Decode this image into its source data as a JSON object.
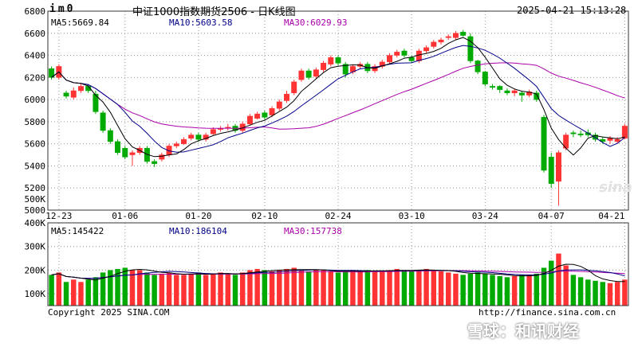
{
  "header": {
    "code": "im0",
    "title": "中证1000指数期货2506 - 日K线图",
    "timestamp": "2025-04-21 15:13:28"
  },
  "price_panel": {
    "ma5_label": "MA5:5669.84",
    "ma10_label": "MA10:5603.58",
    "ma30_label": "MA30:6029.93",
    "y_ticks": [
      "6800",
      "6600",
      "6400",
      "6200",
      "6000",
      "5800",
      "5600",
      "5400",
      "5200",
      "500K",
      "5000"
    ]
  },
  "volume_panel": {
    "ma5_label": "MA5:145422",
    "ma10_label": "MA10:186104",
    "ma30_label": "MA30:157738",
    "y_ticks": [
      "400K",
      "300K",
      "200K",
      "100K"
    ]
  },
  "x_ticks": [
    "12-23",
    "01-06",
    "01-20",
    "02-10",
    "02-24",
    "03-10",
    "03-24",
    "04-07",
    "04-21"
  ],
  "footer": {
    "copyright": "Copyright 2025 SINA.COM",
    "url": "http://finance.sina.com.cn",
    "watermark": "雪球：和讯财经",
    "logo": "sina"
  },
  "colors": {
    "up": "#ff3333",
    "down": "#00aa00",
    "ma5": "#000000",
    "ma10": "#000088",
    "ma30": "#aa00aa",
    "grid": "#999999"
  },
  "chart_data": {
    "type": "candlestick",
    "ylim": [
      5000,
      6800
    ],
    "volume_ylim": [
      50000,
      400000
    ],
    "dates": [
      "12-20",
      "12-23",
      "12-24",
      "12-25",
      "12-26",
      "12-27",
      "12-30",
      "12-31",
      "01-02",
      "01-03",
      "01-06",
      "01-07",
      "01-08",
      "01-09",
      "01-10",
      "01-13",
      "01-14",
      "01-15",
      "01-16",
      "01-17",
      "01-20",
      "01-21",
      "01-22",
      "01-23",
      "01-24",
      "01-27",
      "02-05",
      "02-06",
      "02-07",
      "02-10",
      "02-11",
      "02-12",
      "02-13",
      "02-14",
      "02-17",
      "02-18",
      "02-19",
      "02-20",
      "02-21",
      "02-24",
      "02-25",
      "02-26",
      "02-27",
      "02-28",
      "03-03",
      "03-04",
      "03-05",
      "03-06",
      "03-07",
      "03-10",
      "03-11",
      "03-12",
      "03-13",
      "03-14",
      "03-17",
      "03-18",
      "03-19",
      "03-20",
      "03-21",
      "03-24",
      "03-25",
      "03-26",
      "03-27",
      "03-28",
      "03-31",
      "04-01",
      "04-02",
      "04-03",
      "04-07",
      "04-08",
      "04-09",
      "04-10",
      "04-11",
      "04-14",
      "04-15",
      "04-16",
      "04-17",
      "04-18",
      "04-21"
    ],
    "open": [
      6280,
      6200,
      6060,
      6020,
      6080,
      6120,
      6050,
      5880,
      5720,
      5620,
      5560,
      5500,
      5520,
      5560,
      5440,
      5460,
      5500,
      5580,
      5600,
      5650,
      5680,
      5640,
      5690,
      5730,
      5740,
      5760,
      5720,
      5780,
      5830,
      5880,
      5860,
      5920,
      5990,
      6060,
      6180,
      6260,
      6210,
      6270,
      6320,
      6380,
      6320,
      6250,
      6300,
      6320,
      6260,
      6300,
      6340,
      6400,
      6440,
      6380,
      6350,
      6440,
      6480,
      6520,
      6560,
      6560,
      6610,
      6570,
      6350,
      6250,
      6120,
      6120,
      6080,
      6060,
      6060,
      6040,
      6060,
      5840,
      5480,
      5260,
      5560,
      5700,
      5690,
      5700,
      5680,
      5640,
      5630,
      5620,
      5650
    ],
    "close": [
      6200,
      6300,
      6030,
      6080,
      6120,
      6080,
      5890,
      5720,
      5620,
      5520,
      5480,
      5520,
      5560,
      5440,
      5420,
      5500,
      5580,
      5600,
      5640,
      5680,
      5640,
      5680,
      5730,
      5740,
      5750,
      5720,
      5780,
      5850,
      5870,
      5840,
      5920,
      5980,
      6050,
      6160,
      6260,
      6200,
      6270,
      6330,
      6380,
      6330,
      6230,
      6300,
      6320,
      6260,
      6300,
      6340,
      6400,
      6430,
      6400,
      6350,
      6440,
      6470,
      6520,
      6540,
      6570,
      6600,
      6580,
      6350,
      6250,
      6140,
      6110,
      6090,
      6060,
      6080,
      6040,
      6070,
      6000,
      5360,
      5240,
      5520,
      5680,
      5690,
      5680,
      5680,
      5640,
      5620,
      5650,
      5640,
      5760
    ],
    "high": [
      6300,
      6320,
      6080,
      6110,
      6140,
      6140,
      6080,
      5900,
      5740,
      5640,
      5580,
      5540,
      5580,
      5580,
      5460,
      5520,
      5600,
      5620,
      5660,
      5700,
      5700,
      5700,
      5750,
      5760,
      5780,
      5780,
      5800,
      5870,
      5890,
      5900,
      5940,
      6000,
      6080,
      6180,
      6280,
      6280,
      6290,
      6350,
      6400,
      6400,
      6340,
      6320,
      6340,
      6340,
      6320,
      6360,
      6420,
      6450,
      6460,
      6400,
      6460,
      6490,
      6540,
      6560,
      6590,
      6620,
      6630,
      6600,
      6360,
      6260,
      6140,
      6130,
      6100,
      6100,
      6080,
      6090,
      6080,
      5860,
      5520,
      5540,
      5700,
      5720,
      5720,
      5730,
      5700,
      5660,
      5670,
      5660,
      5780
    ],
    "low": [
      6180,
      6180,
      6010,
      6000,
      6060,
      6060,
      5870,
      5700,
      5600,
      5500,
      5460,
      5400,
      5500,
      5420,
      5390,
      5440,
      5480,
      5560,
      5590,
      5630,
      5620,
      5620,
      5680,
      5710,
      5720,
      5700,
      5700,
      5770,
      5820,
      5820,
      5840,
      5900,
      5970,
      6040,
      6160,
      6180,
      6190,
      6250,
      6300,
      6310,
      6200,
      6230,
      6280,
      6240,
      6240,
      6280,
      6320,
      6380,
      6380,
      6330,
      6330,
      6420,
      6460,
      6500,
      6540,
      6540,
      6570,
      6330,
      6230,
      6120,
      6090,
      6060,
      6040,
      6030,
      5980,
      6020,
      5980,
      5340,
      5200,
      5040,
      5540,
      5660,
      5660,
      5660,
      5620,
      5600,
      5600,
      5600,
      5640
    ],
    "volume": [
      180000,
      190000,
      150000,
      160000,
      150000,
      160000,
      170000,
      190000,
      200000,
      205000,
      210000,
      200000,
      200000,
      190000,
      180000,
      185000,
      190000,
      180000,
      180000,
      185000,
      190000,
      180000,
      185000,
      190000,
      185000,
      180000,
      190000,
      200000,
      205000,
      200000,
      195000,
      200000,
      205000,
      210000,
      200000,
      195000,
      200000,
      200000,
      195000,
      190000,
      195000,
      200000,
      195000,
      200000,
      195000,
      195000,
      200000,
      205000,
      200000,
      195000,
      200000,
      205000,
      200000,
      195000,
      190000,
      185000,
      180000,
      185000,
      190000,
      185000,
      180000,
      175000,
      170000,
      175000,
      180000,
      180000,
      185000,
      210000,
      240000,
      270000,
      220000,
      180000,
      170000,
      160000,
      155000,
      150000,
      145000,
      150000,
      160000
    ]
  }
}
